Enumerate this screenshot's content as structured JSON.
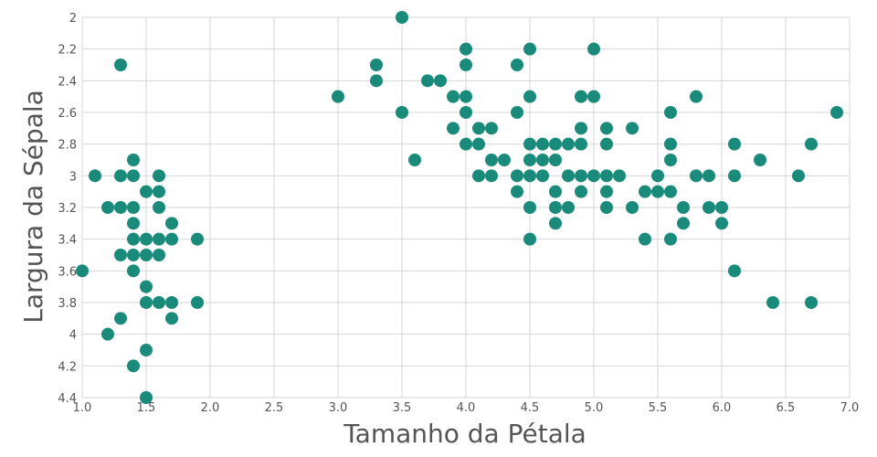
{
  "chart_data": {
    "type": "scatter",
    "title": "",
    "xlabel": "Tamanho da Pétala",
    "ylabel": "Largura da Sépala",
    "xlim": [
      1.0,
      7.0
    ],
    "ylim": [
      2.0,
      4.4
    ],
    "y_inverted": true,
    "grid": true,
    "x_ticks": [
      "1.0",
      "1.5",
      "2.0",
      "2.5",
      "3.0",
      "3.5",
      "4.0",
      "4.5",
      "5.0",
      "5.5",
      "6.0",
      "6.5",
      "7.0"
    ],
    "y_ticks": [
      "2",
      "2.2",
      "2.4",
      "2.6",
      "2.8",
      "3",
      "3.2",
      "3.4",
      "3.6",
      "3.8",
      "4",
      "4.2",
      "4.4"
    ],
    "marker_color": "#1a8a7a",
    "points": [
      [
        1.0,
        3.6
      ],
      [
        1.1,
        3.0
      ],
      [
        1.2,
        3.2
      ],
      [
        1.2,
        4.0
      ],
      [
        1.3,
        2.3
      ],
      [
        1.3,
        3.0
      ],
      [
        1.3,
        3.2
      ],
      [
        1.3,
        3.5
      ],
      [
        1.3,
        3.9
      ],
      [
        1.4,
        2.9
      ],
      [
        1.4,
        3.0
      ],
      [
        1.4,
        3.2
      ],
      [
        1.4,
        3.3
      ],
      [
        1.4,
        3.4
      ],
      [
        1.4,
        3.5
      ],
      [
        1.4,
        3.6
      ],
      [
        1.4,
        4.2
      ],
      [
        1.5,
        3.1
      ],
      [
        1.5,
        3.4
      ],
      [
        1.5,
        3.5
      ],
      [
        1.5,
        3.7
      ],
      [
        1.5,
        3.8
      ],
      [
        1.5,
        4.1
      ],
      [
        1.5,
        4.4
      ],
      [
        1.6,
        3.0
      ],
      [
        1.6,
        3.1
      ],
      [
        1.6,
        3.2
      ],
      [
        1.6,
        3.4
      ],
      [
        1.6,
        3.5
      ],
      [
        1.6,
        3.8
      ],
      [
        1.7,
        3.3
      ],
      [
        1.7,
        3.4
      ],
      [
        1.7,
        3.8
      ],
      [
        1.7,
        3.9
      ],
      [
        1.9,
        3.4
      ],
      [
        1.9,
        3.8
      ],
      [
        3.0,
        2.5
      ],
      [
        3.3,
        2.3
      ],
      [
        3.3,
        2.4
      ],
      [
        3.5,
        2.0
      ],
      [
        3.5,
        2.6
      ],
      [
        3.6,
        2.9
      ],
      [
        3.7,
        2.4
      ],
      [
        3.8,
        2.4
      ],
      [
        3.9,
        2.5
      ],
      [
        3.9,
        2.7
      ],
      [
        4.0,
        2.2
      ],
      [
        4.0,
        2.3
      ],
      [
        4.0,
        2.5
      ],
      [
        4.0,
        2.6
      ],
      [
        4.0,
        2.8
      ],
      [
        4.1,
        2.7
      ],
      [
        4.1,
        2.8
      ],
      [
        4.1,
        3.0
      ],
      [
        4.2,
        2.7
      ],
      [
        4.2,
        2.9
      ],
      [
        4.2,
        3.0
      ],
      [
        4.3,
        2.9
      ],
      [
        4.4,
        2.3
      ],
      [
        4.4,
        2.6
      ],
      [
        4.4,
        3.0
      ],
      [
        4.4,
        3.1
      ],
      [
        4.5,
        2.2
      ],
      [
        4.5,
        2.5
      ],
      [
        4.5,
        2.8
      ],
      [
        4.5,
        2.9
      ],
      [
        4.5,
        3.0
      ],
      [
        4.5,
        3.2
      ],
      [
        4.5,
        3.4
      ],
      [
        4.6,
        2.8
      ],
      [
        4.6,
        2.9
      ],
      [
        4.6,
        3.0
      ],
      [
        4.7,
        2.8
      ],
      [
        4.7,
        2.9
      ],
      [
        4.7,
        3.1
      ],
      [
        4.7,
        3.2
      ],
      [
        4.7,
        3.3
      ],
      [
        4.8,
        2.8
      ],
      [
        4.8,
        3.0
      ],
      [
        4.8,
        3.2
      ],
      [
        4.9,
        2.5
      ],
      [
        4.9,
        2.7
      ],
      [
        4.9,
        2.8
      ],
      [
        4.9,
        3.0
      ],
      [
        4.9,
        3.1
      ],
      [
        5.0,
        2.2
      ],
      [
        5.0,
        2.5
      ],
      [
        5.0,
        3.0
      ],
      [
        5.1,
        2.7
      ],
      [
        5.1,
        2.8
      ],
      [
        5.1,
        3.0
      ],
      [
        5.1,
        3.1
      ],
      [
        5.1,
        3.2
      ],
      [
        5.2,
        3.0
      ],
      [
        5.3,
        2.7
      ],
      [
        5.3,
        3.2
      ],
      [
        5.4,
        3.1
      ],
      [
        5.4,
        3.4
      ],
      [
        5.5,
        3.0
      ],
      [
        5.5,
        3.1
      ],
      [
        5.6,
        2.6
      ],
      [
        5.6,
        2.8
      ],
      [
        5.6,
        2.9
      ],
      [
        5.6,
        3.1
      ],
      [
        5.6,
        3.4
      ],
      [
        5.7,
        3.2
      ],
      [
        5.7,
        3.3
      ],
      [
        5.8,
        2.5
      ],
      [
        5.8,
        3.0
      ],
      [
        5.9,
        3.0
      ],
      [
        5.9,
        3.2
      ],
      [
        6.0,
        3.2
      ],
      [
        6.0,
        3.3
      ],
      [
        6.1,
        2.8
      ],
      [
        6.1,
        3.0
      ],
      [
        6.1,
        3.6
      ],
      [
        6.3,
        2.9
      ],
      [
        6.4,
        3.8
      ],
      [
        6.6,
        3.0
      ],
      [
        6.7,
        2.8
      ],
      [
        6.7,
        3.8
      ],
      [
        6.9,
        2.6
      ]
    ]
  }
}
